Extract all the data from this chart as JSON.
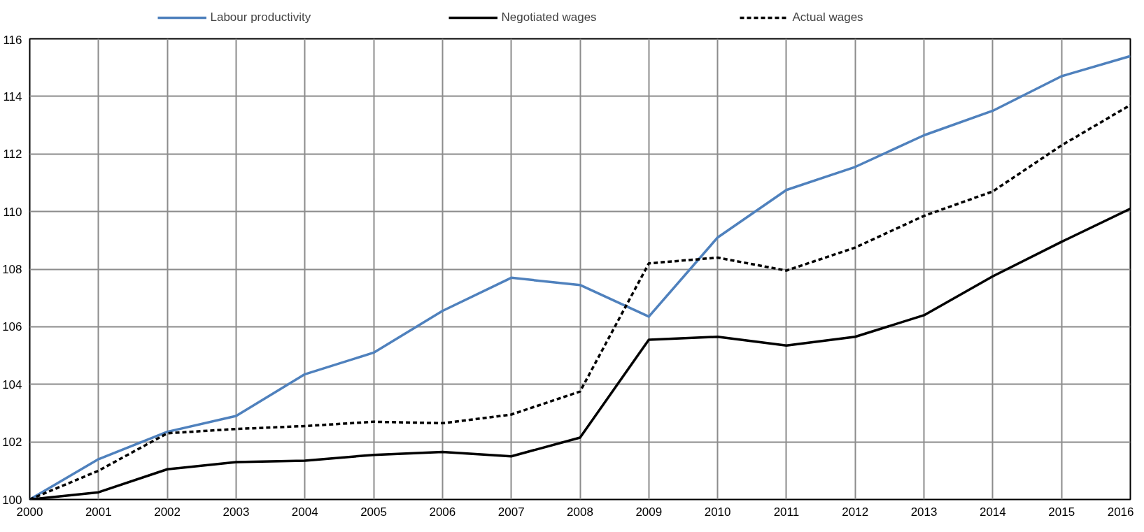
{
  "chart_data": {
    "type": "line",
    "x": [
      2000,
      2001,
      2002,
      2003,
      2004,
      2005,
      2006,
      2007,
      2008,
      2009,
      2010,
      2011,
      2012,
      2013,
      2014,
      2015,
      2016
    ],
    "series": [
      {
        "name": "Labour productivity",
        "color": "#4f81bd",
        "line_style": "solid",
        "values": [
          100,
          101.4,
          102.35,
          102.9,
          104.35,
          105.1,
          106.55,
          107.7,
          107.45,
          106.35,
          109.1,
          110.75,
          111.55,
          112.65,
          113.5,
          114.7,
          115.4
        ]
      },
      {
        "name": "Negotiated wages",
        "color": "#000000",
        "line_style": "solid",
        "values": [
          100,
          100.25,
          101.05,
          101.3,
          101.35,
          101.55,
          101.65,
          101.5,
          102.15,
          105.55,
          105.65,
          105.35,
          105.65,
          106.4,
          107.75,
          108.95,
          110.1
        ]
      },
      {
        "name": "Actual wages",
        "color": "#000000",
        "line_style": "dashed",
        "values": [
          100,
          101.0,
          102.3,
          102.45,
          102.55,
          102.7,
          102.65,
          102.95,
          103.75,
          108.2,
          108.4,
          107.95,
          108.75,
          109.85,
          110.7,
          112.3,
          113.7
        ]
      }
    ],
    "xlim": [
      2000,
      2016
    ],
    "xticks": [
      2000,
      2001,
      2002,
      2003,
      2004,
      2005,
      2006,
      2007,
      2008,
      2009,
      2010,
      2011,
      2012,
      2013,
      2014,
      2015,
      2016
    ],
    "ylim": [
      100,
      116
    ],
    "yticks": [
      100,
      102,
      104,
      106,
      108,
      110,
      112,
      114,
      116
    ],
    "grid": true,
    "legend": "top",
    "marker": "none"
  }
}
